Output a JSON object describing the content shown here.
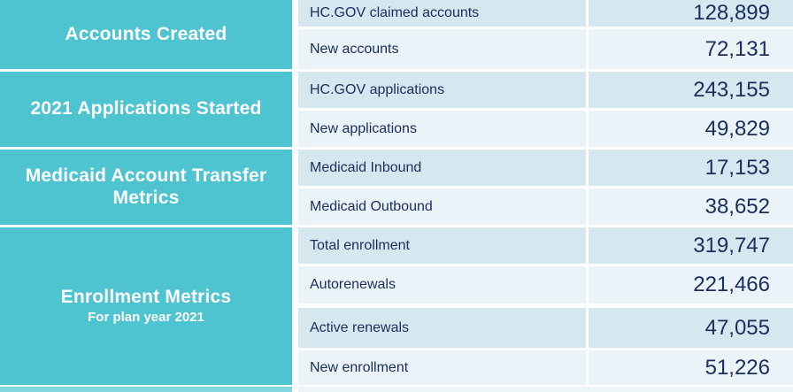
{
  "chart_data": {
    "type": "table",
    "sections": [
      {
        "header": "Accounts Created",
        "subheader": "",
        "rows": [
          {
            "label": "HC.GOV claimed accounts",
            "value": "128,899",
            "value_num": 128899
          },
          {
            "label": "New accounts",
            "value": "72,131",
            "value_num": 72131
          }
        ]
      },
      {
        "header": "2021 Applications Started",
        "subheader": "",
        "rows": [
          {
            "label": "HC.GOV applications",
            "value": "243,155",
            "value_num": 243155
          },
          {
            "label": "New applications",
            "value": "49,829",
            "value_num": 49829
          }
        ]
      },
      {
        "header": "Medicaid Account Transfer Metrics",
        "subheader": "",
        "rows": [
          {
            "label": "Medicaid Inbound",
            "value": "17,153",
            "value_num": 17153
          },
          {
            "label": "Medicaid Outbound",
            "value": "38,652",
            "value_num": 38652
          }
        ]
      },
      {
        "header": "Enrollment Metrics",
        "subheader": "For plan year 2021",
        "rows": [
          {
            "label": "Total enrollment",
            "value": "319,747",
            "value_num": 319747
          },
          {
            "label": "Autorenewals",
            "value": "221,466",
            "value_num": 221466
          },
          {
            "label": "Active renewals",
            "value": "47,055",
            "value_num": 47055
          },
          {
            "label": "New enrollment",
            "value": "51,226",
            "value_num": 51226
          }
        ]
      }
    ]
  },
  "colors": {
    "section_header_bg": "#4DC4D0",
    "section_header_bg_light": "#82D6DD",
    "row_bg_dark": "#D5E8F0",
    "row_bg_light": "#E9F3F8",
    "row_bg_pale": "#EEF5F9",
    "text_navy": "#1A2E5C",
    "header_text": "#FFFFFF"
  }
}
